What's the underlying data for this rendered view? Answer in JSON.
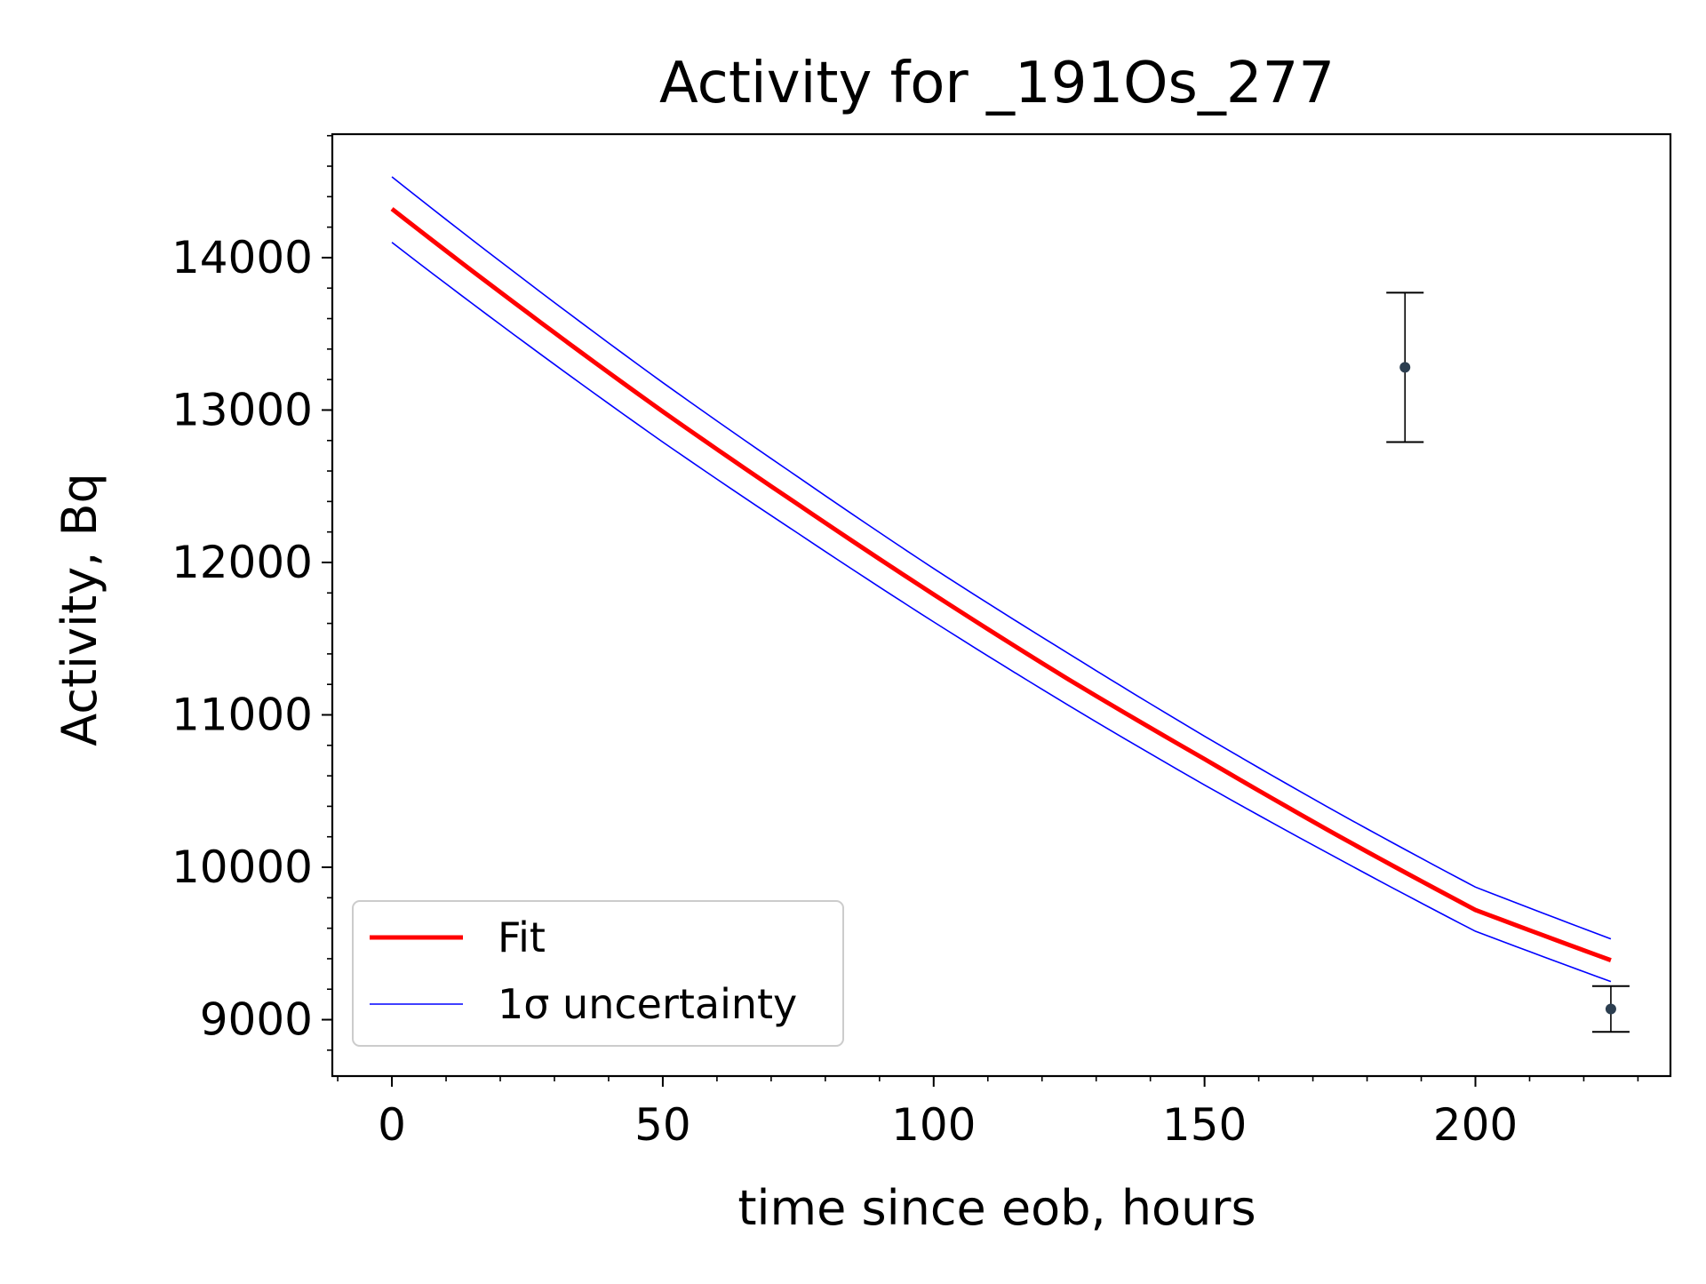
{
  "chart_data": {
    "type": "line",
    "title": "Activity for _191Os_277",
    "xlabel": "time since eob, hours",
    "ylabel": "Activity, Bq",
    "xlim": [
      -11,
      236
    ],
    "ylim": [
      8630,
      14810
    ],
    "x_ticks": [
      0,
      50,
      100,
      150,
      200
    ],
    "x_tick_labels": [
      "0",
      "50",
      "100",
      "150",
      "200"
    ],
    "y_ticks": [
      9000,
      10000,
      11000,
      12000,
      13000,
      14000
    ],
    "y_tick_labels": [
      "9000",
      "10000",
      "11000",
      "12000",
      "13000",
      "14000"
    ],
    "x_minor_step": 10,
    "y_minor_step": 200,
    "grid": false,
    "legend_position": "lower-left",
    "legend": [
      {
        "label": "Fit",
        "color": "#ff0000",
        "style": "thick-line"
      },
      {
        "label": "1σ uncertainty",
        "color": "#0000ff",
        "style": "thin-line"
      }
    ],
    "fit": {
      "name": "Fit",
      "color": "#ff0000",
      "x": [
        0,
        25,
        50,
        75,
        100,
        125,
        150,
        175,
        200,
        225
      ],
      "y": [
        14320,
        13640,
        12990,
        12380,
        11790,
        11230,
        10710,
        10200,
        9720,
        9390
      ]
    },
    "uncertainty_upper": {
      "name": "1σ uncertainty",
      "color": "#0000ff",
      "x": [
        0,
        25,
        50,
        75,
        100,
        125,
        150,
        175,
        200,
        225
      ],
      "y": [
        14530,
        13840,
        13180,
        12560,
        11960,
        11400,
        10860,
        10350,
        9870,
        9530
      ]
    },
    "uncertainty_lower": {
      "name": "1σ uncertainty",
      "color": "#0000ff",
      "x": [
        0,
        25,
        50,
        75,
        100,
        125,
        150,
        175,
        200,
        225
      ],
      "y": [
        14100,
        13430,
        12790,
        12190,
        11610,
        11060,
        10540,
        10050,
        9580,
        9250
      ]
    },
    "measurements": {
      "color": "#2c3e50",
      "points": [
        {
          "x": 187,
          "y": 13280,
          "err": 490
        },
        {
          "x": 225,
          "y": 9070,
          "err": 150
        }
      ]
    }
  }
}
